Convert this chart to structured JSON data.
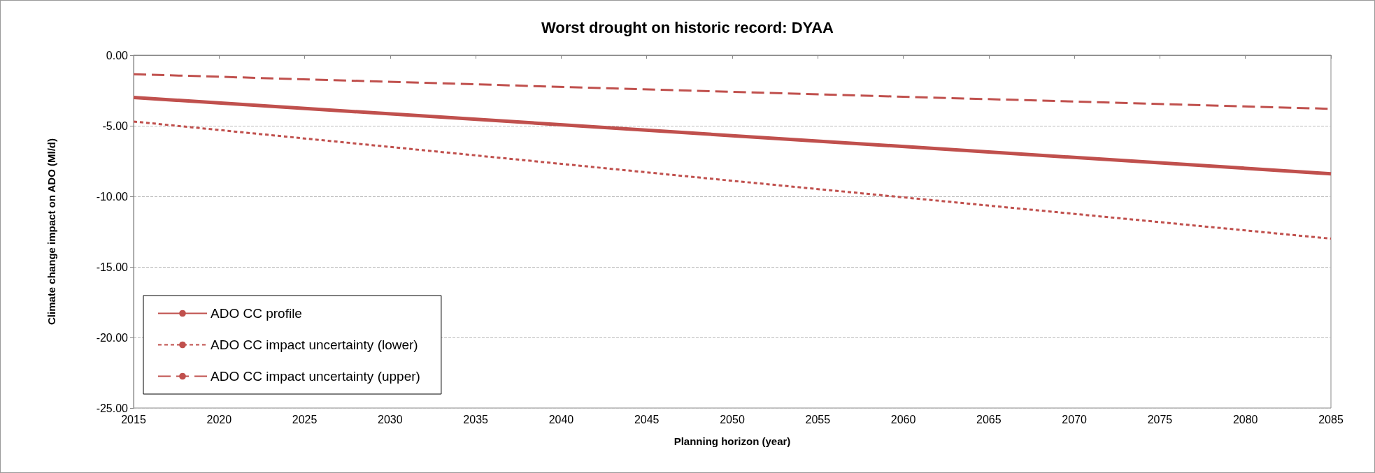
{
  "chart_data": {
    "type": "line",
    "title": "Worst drought on historic record: DYAA",
    "xlabel": "Planning horizon (year)",
    "ylabel": "Climate change impact on ADO (Ml/d)",
    "x": [
      2015,
      2050,
      2085
    ],
    "series": [
      {
        "name": "ADO CC profile",
        "color": "#c0504d",
        "line_style": "solid",
        "values": [
          -3.0,
          -5.7,
          -8.4
        ]
      },
      {
        "name": "ADO CC impact uncertainty (lower)",
        "color": "#c0504d",
        "line_style": "dotted",
        "values": [
          -4.7,
          -8.9,
          -13.0
        ]
      },
      {
        "name": "ADO CC impact uncertainty (upper)",
        "color": "#c0504d",
        "line_style": "dashed",
        "values": [
          -1.35,
          -2.6,
          -3.8
        ]
      }
    ],
    "xlim": [
      2015,
      2085
    ],
    "xticks": [
      2015,
      2020,
      2025,
      2030,
      2035,
      2040,
      2045,
      2050,
      2055,
      2060,
      2065,
      2070,
      2075,
      2080,
      2085
    ],
    "ylim": [
      -25,
      0
    ],
    "yticks": [
      {
        "value": -25,
        "label": "-25.00"
      },
      {
        "value": -20,
        "label": "-20.00"
      },
      {
        "value": -15,
        "label": "-15.00"
      },
      {
        "value": -10,
        "label": "-10.00"
      },
      {
        "value": -5,
        "label": "-5.00"
      },
      {
        "value": 0,
        "label": "0.00"
      }
    ],
    "grid": "y",
    "legend": "bottom left",
    "marker": "none"
  }
}
